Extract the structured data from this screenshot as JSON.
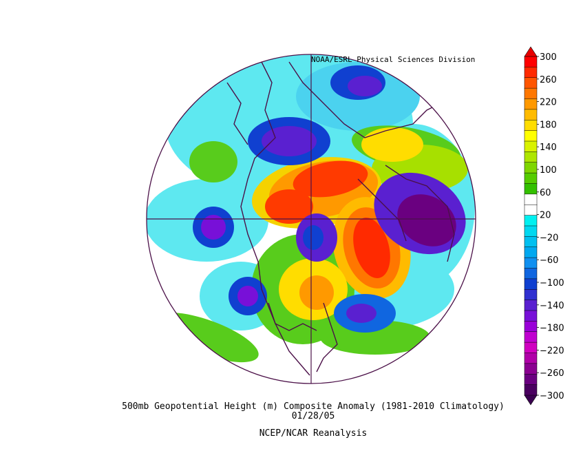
{
  "credit": "NOAA/ESRL Physical Sciences Division",
  "caption": {
    "line1": "500mb Geopotential Height (m) Composite Anomaly (1981-2010 Climatology)",
    "line2": "01/28/05",
    "line3": "NCEP/NCAR Reanalysis"
  },
  "map": {
    "projection": "north-polar-stereographic",
    "variable": "500mb geopotential height anomaly",
    "units": "m",
    "date": "01/28/05",
    "features": [
      {
        "name": "positive-anomaly-north-atlantic-greenland",
        "sign": "positive",
        "peak": 260
      },
      {
        "name": "positive-anomaly-polar-cap",
        "sign": "positive",
        "peak": 240
      },
      {
        "name": "positive-anomaly-east-siberia",
        "sign": "positive",
        "peak": 240
      },
      {
        "name": "positive-anomaly-north-america",
        "sign": "positive",
        "peak": 180
      },
      {
        "name": "negative-anomaly-western-russia-scandinavia",
        "sign": "negative",
        "peak": -280
      },
      {
        "name": "negative-anomaly-north-pacific",
        "sign": "negative",
        "peak": -180
      },
      {
        "name": "negative-anomaly-northern-canada",
        "sign": "negative",
        "peak": -180
      },
      {
        "name": "negative-anomaly-north-atlantic-east",
        "sign": "negative",
        "peak": -160
      },
      {
        "name": "negative-anomaly-east-asia",
        "sign": "negative",
        "peak": -180
      }
    ]
  },
  "colorbar": {
    "tick_labels": [
      "300",
      "260",
      "220",
      "180",
      "140",
      "100",
      "60",
      "20",
      "-20",
      "-60",
      "-100",
      "-140",
      "-180",
      "-220",
      "-260",
      "-300"
    ],
    "colors": [
      "#ff0000",
      "#ff2a00",
      "#ff5500",
      "#ff7700",
      "#ff9900",
      "#ffbb00",
      "#ffdd00",
      "#ffff00",
      "#d9f200",
      "#aee600",
      "#7fd600",
      "#55cc00",
      "#33c000",
      "#ffffff",
      "#ffffff",
      "#00f0f0",
      "#00d8f0",
      "#00c0f0",
      "#00a8f0",
      "#1090f0",
      "#1066e0",
      "#1040d0",
      "#3030d0",
      "#5a20d0",
      "#7810d8",
      "#9a00d8",
      "#c000d0",
      "#d000c0",
      "#b000a8",
      "#8a0090",
      "#6a0080",
      "#4a0060"
    ]
  },
  "colors": {
    "coastline": "#4b1048",
    "gridline": "#4b1048",
    "background": "#ffffff"
  }
}
